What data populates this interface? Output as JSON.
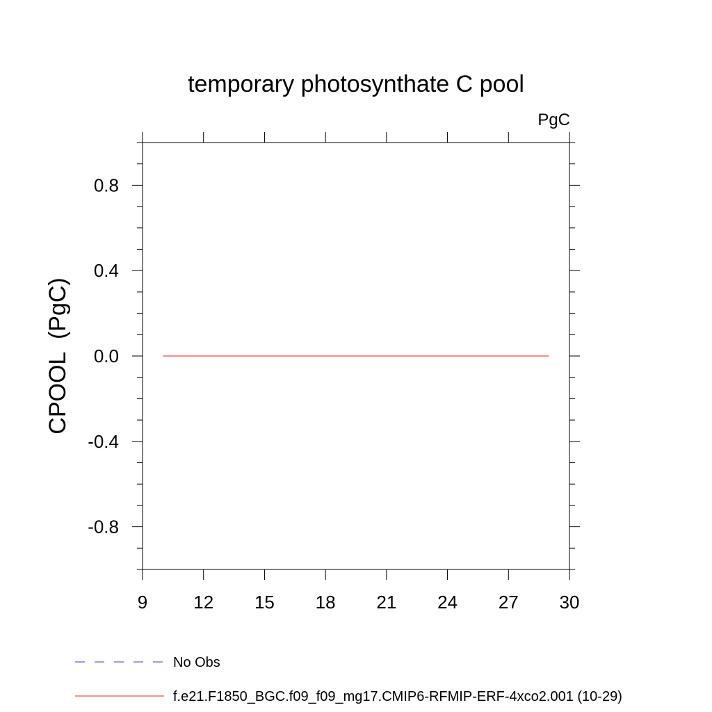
{
  "chart_data": {
    "type": "line",
    "title": "temporary photosynthate C pool",
    "units_label": "PgC",
    "xlabel": "",
    "ylabel": "CPOOL  (PgC)",
    "xlim": [
      9,
      30
    ],
    "ylim": [
      -1.0,
      1.0
    ],
    "x_ticks": [
      9,
      12,
      15,
      18,
      21,
      24,
      27,
      30
    ],
    "y_ticks": [
      -0.8,
      -0.4,
      0.0,
      0.4,
      0.8
    ],
    "y_tick_labels": [
      "-0.8",
      "-0.4",
      "0.0",
      "0.4",
      "0.8"
    ],
    "grid": false,
    "legend_position": "bottom",
    "series": [
      {
        "name": "No Obs",
        "color": "#7f7fd6",
        "dash": "dashed",
        "x": [],
        "y": []
      },
      {
        "name": "f.e21.F1850_BGC.f09_f09_mg17.CMIP6-RFMIP-ERF-4xco2.001 (10-29)",
        "color": "#ff6666",
        "dash": "solid",
        "x": [
          10,
          29
        ],
        "y": [
          0.0,
          0.0
        ]
      }
    ]
  }
}
